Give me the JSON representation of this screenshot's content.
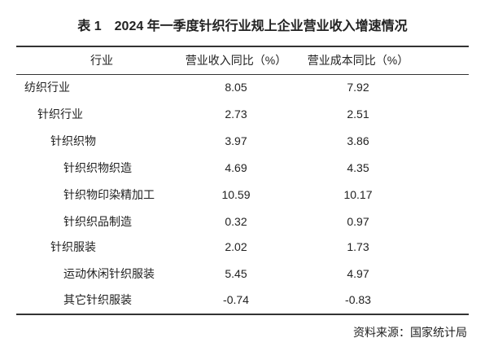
{
  "table": {
    "title": "表 1　2024 年一季度针织行业规上企业营业收入增速情况",
    "header": [
      "行业",
      "营业收入同比（%）",
      "营业成本同比（%）"
    ],
    "rows": [
      [
        "纺织行业",
        8.05,
        7.92
      ],
      [
        "针织行业",
        2.73,
        2.51
      ],
      [
        "针织织物",
        3.97,
        3.86
      ],
      [
        "针织织物织造",
        4.69,
        4.35
      ],
      [
        "针织物印染精加工",
        10.59,
        10.17
      ],
      [
        "针织织品制造",
        0.32,
        0.97
      ],
      [
        "针织服装",
        2.02,
        1.73
      ],
      [
        "运动休闲针织服装",
        5.45,
        4.97
      ],
      [
        "其它针织服装",
        -0.74,
        -0.83
      ]
    ]
  },
  "source": "资料来源：国家统计局"
}
